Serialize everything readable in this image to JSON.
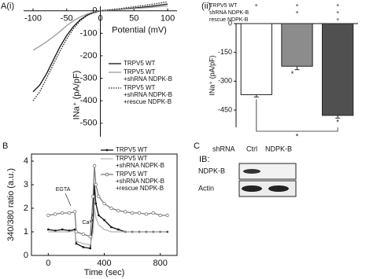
{
  "chart_data": [
    {
      "type": "line",
      "panel": "A(i)",
      "xlabel": "Potential (mV)",
      "ylabel": "INa⁺ (pA/pF)",
      "axes_cross_at_origin": true,
      "x": [
        -100,
        -90,
        -80,
        -70,
        -60,
        -50,
        -40,
        -30,
        -20,
        -10,
        0,
        25,
        50,
        75,
        100
      ],
      "series": [
        {
          "name": "TRPV5 WT",
          "color": "#111111",
          "linestyle": "solid",
          "marker": null,
          "values": [
            -360,
            -330,
            -280,
            -220,
            -160,
            -110,
            -70,
            -40,
            -20,
            -8,
            0,
            5,
            12,
            20,
            30
          ]
        },
        {
          "name": "TRPV5 WT\n+shRNA NDPK-B",
          "color": "#9a9a9a",
          "linestyle": "solid",
          "marker": null,
          "values": [
            -175,
            -158,
            -138,
            -116,
            -92,
            -66,
            -45,
            -28,
            -15,
            -6,
            0,
            5,
            10,
            15,
            22
          ]
        },
        {
          "name": "TRPV5 WT\n+shRNA NDPK-B\n+rescue NDPK-B",
          "color": "#222222",
          "linestyle": "dotted",
          "marker": null,
          "values": [
            -400,
            -360,
            -300,
            -240,
            -180,
            -125,
            -80,
            -45,
            -22,
            -8,
            0,
            8,
            18,
            28,
            40
          ]
        }
      ],
      "xlim": [
        -114,
        114
      ],
      "xticks": [
        -100,
        -50,
        0,
        50,
        100
      ],
      "ylim": [
        -560,
        20
      ],
      "yticks": [
        0,
        -100,
        -200,
        -300,
        -400,
        -500
      ]
    },
    {
      "type": "bar",
      "panel": "(ii)",
      "ylabel": "INa⁺ (pA/pF)",
      "conditions": [
        {
          "label": "TRPV5 WT",
          "marks": [
            "+",
            "+",
            "+"
          ]
        },
        {
          "label": "shRNA NDPK-B",
          "marks": [
            null,
            "+",
            "+"
          ]
        },
        {
          "label": "rescue NDPK-B",
          "marks": [
            null,
            null,
            "+"
          ]
        }
      ],
      "categories": [
        null,
        null,
        null
      ],
      "values": [
        -370,
        -222,
        -478
      ],
      "errors": [
        12,
        18,
        14
      ],
      "colors": [
        "#ffffff",
        "#8c8c8c",
        "#505050"
      ],
      "annotations": [
        "*",
        "*",
        "*"
      ],
      "ylim": [
        -540,
        0
      ],
      "yticks": [
        0,
        -150,
        -300,
        -450
      ]
    },
    {
      "type": "line",
      "panel": "B",
      "xlabel": "Time (sec)",
      "ylabel": "340/380 ratio (a.u.)",
      "axes_cross_at_origin": false,
      "annotations": [
        "EGTA",
        "Ca²⁺"
      ],
      "x": [
        0,
        50,
        100,
        150,
        190,
        200,
        250,
        300,
        320,
        330,
        340,
        360,
        400,
        450,
        500,
        550,
        600,
        650,
        700,
        750,
        800,
        850
      ],
      "series": [
        {
          "name": "TRPV5 WT",
          "color": "#111111",
          "linestyle": "solid",
          "marker": "square",
          "values": [
            1.1,
            1.05,
            1.1,
            1.05,
            1.1,
            0.5,
            0.35,
            0.3,
            1.5,
            3.0,
            2.2,
            1.7,
            1.5,
            1.2,
            1.1,
            1.0,
            1.0,
            1.0,
            1.0,
            1.0,
            1.0,
            1.0
          ]
        },
        {
          "name": "TRPV5 WT\n+shRNA NDPK-B",
          "color": "#b5b5b5",
          "linestyle": "solid",
          "marker": null,
          "values": [
            1.0,
            1.0,
            1.0,
            1.0,
            1.05,
            0.6,
            0.5,
            0.45,
            1.0,
            2.0,
            1.6,
            1.3,
            1.1,
            1.0,
            1.0,
            1.0,
            1.0,
            1.0,
            1.0,
            1.0,
            1.0,
            1.0
          ]
        },
        {
          "name": "TRPV5 WT\n+shRNA NDPK-B\n+rescue NDPK-B",
          "color": "#7a7a7a",
          "linestyle": "solid",
          "marker": "circle",
          "values": [
            1.7,
            1.75,
            1.8,
            1.8,
            1.85,
            1.0,
            0.9,
            0.8,
            2.5,
            3.8,
            3.0,
            2.5,
            2.2,
            2.0,
            1.9,
            1.85,
            1.8,
            1.8,
            1.75,
            1.8,
            1.7,
            1.7
          ]
        }
      ],
      "xlim": [
        -120,
        920
      ],
      "xticks": [
        0,
        400,
        800
      ],
      "ylim": [
        0,
        4.3
      ],
      "yticks": [
        0,
        1,
        2,
        3,
        4
      ]
    }
  ],
  "blot": {
    "panel": "C",
    "row_header": "shRNA",
    "lanes": [
      "Ctrl",
      "NDPK-B"
    ],
    "ib_label": "IB:",
    "rows": [
      "NDPK-B",
      "Actin"
    ]
  }
}
